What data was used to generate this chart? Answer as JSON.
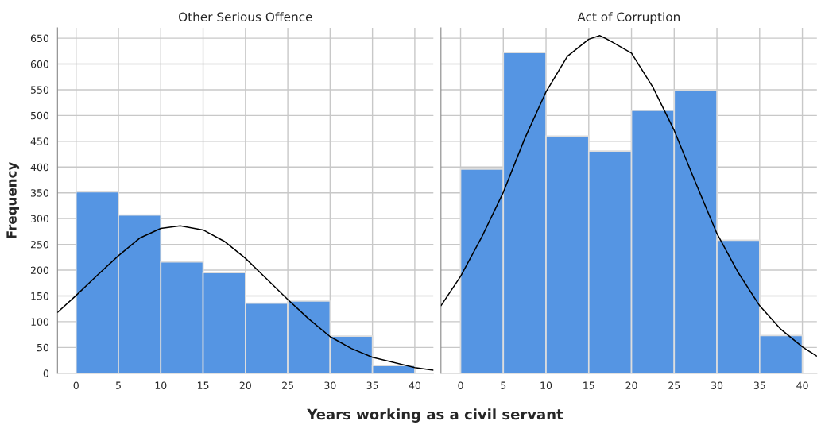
{
  "chart_data": [
    {
      "type": "histogram",
      "title": "Other Serious Offence",
      "xlabel": "Years working as a civil servant",
      "ylabel": "Frequency",
      "bins": [
        0,
        5,
        10,
        15,
        20,
        25,
        30,
        35,
        40
      ],
      "xlim": [
        -2.2,
        42.2
      ],
      "xticks": [
        0,
        5,
        10,
        15,
        20,
        25,
        30,
        35,
        40
      ],
      "ylim": [
        0,
        670
      ],
      "yticks": [
        0,
        50,
        100,
        150,
        200,
        250,
        300,
        350,
        400,
        450,
        500,
        550,
        600,
        650
      ],
      "grid": true,
      "series": [
        {
          "color": "#5595e3",
          "values": [
            352,
            307,
            216,
            195,
            136,
            140,
            72,
            15
          ]
        },
        {
          "type": "line",
          "color": "#000000",
          "x": [
            -2.2,
            0,
            2.5,
            5,
            7.5,
            10,
            12.3,
            15,
            17.5,
            20,
            22.5,
            25,
            27.5,
            30,
            32.5,
            35,
            40,
            42.2
          ],
          "values": [
            118,
            151,
            190,
            228,
            262,
            281,
            286,
            278,
            256,
            223,
            183,
            143,
            105,
            71,
            48,
            31,
            11,
            6
          ]
        }
      ]
    },
    {
      "type": "histogram",
      "title": "Act of Corruption",
      "bins": [
        0,
        5,
        10,
        15,
        20,
        25,
        30,
        35,
        40
      ],
      "xlim": [
        -2.3,
        41.7
      ],
      "xticks": [
        0,
        5,
        10,
        15,
        20,
        25,
        30,
        35,
        40
      ],
      "ylim": [
        0,
        670
      ],
      "yticks": [
        0,
        50,
        100,
        150,
        200,
        250,
        300,
        350,
        400,
        450,
        500,
        550,
        600,
        650
      ],
      "tick_labels": "x",
      "grid": true,
      "series": [
        {
          "color": "#5595e3",
          "values": [
            396,
            622,
            460,
            431,
            510,
            548,
            258,
            73
          ]
        },
        {
          "type": "line",
          "color": "#000000",
          "x": [
            -2.3,
            0,
            2.5,
            5,
            7.5,
            10,
            12.5,
            15,
            16.3,
            17.5,
            20,
            22.5,
            25,
            27.5,
            30,
            32.5,
            35,
            37.5,
            40,
            41.7
          ],
          "values": [
            131,
            188,
            265,
            351,
            455,
            546,
            615,
            648,
            655,
            645,
            621,
            555,
            471,
            370,
            271,
            195,
            131,
            85,
            51,
            33
          ]
        }
      ]
    }
  ]
}
